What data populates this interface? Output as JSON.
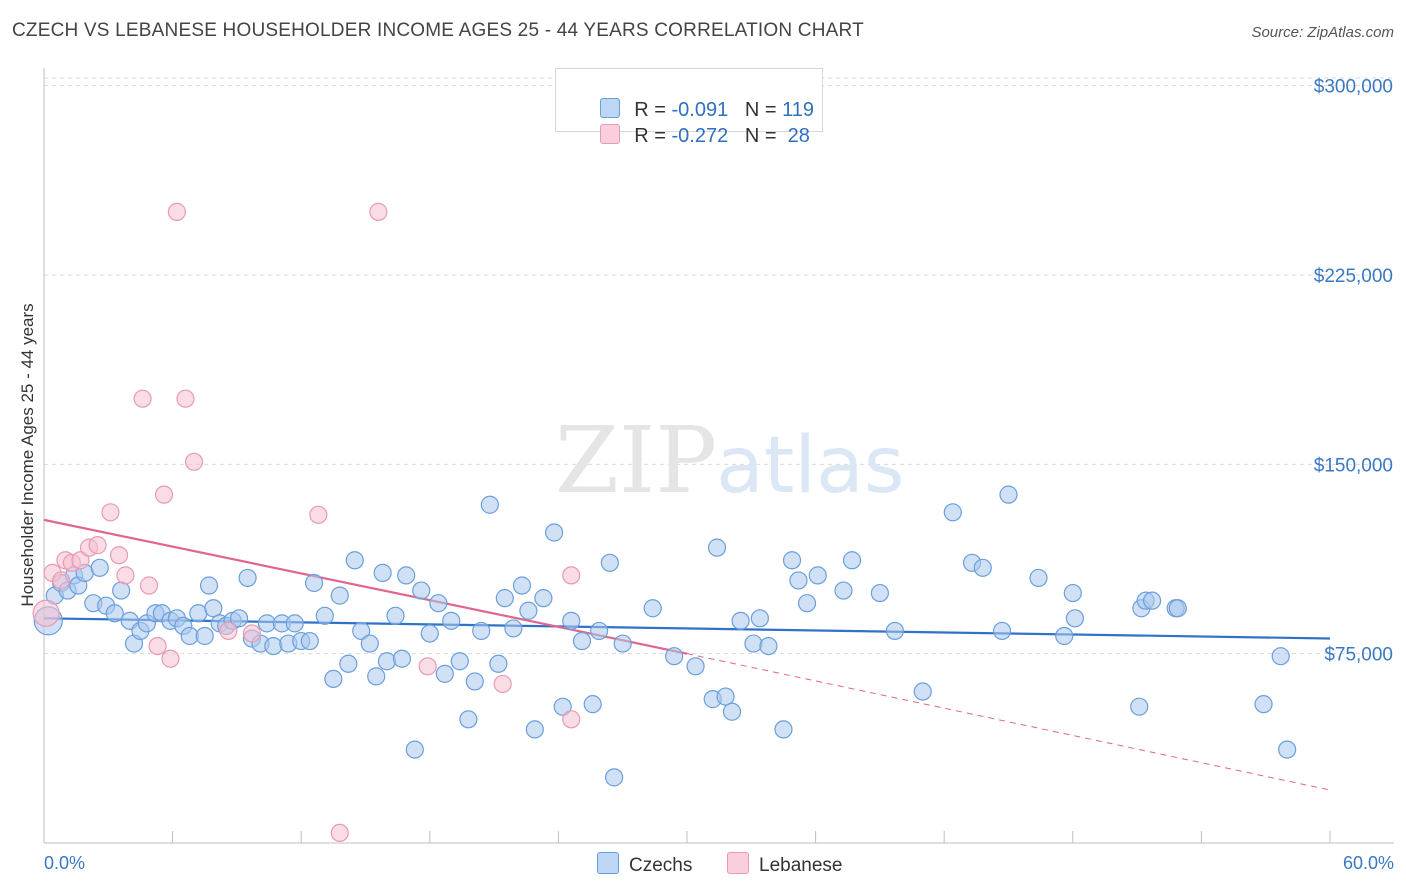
{
  "title": "CZECH VS LEBANESE HOUSEHOLDER INCOME AGES 25 - 44 YEARS CORRELATION CHART",
  "source": "Source: ZipAtlas.com",
  "watermark": {
    "zip": "ZIP",
    "atlas": "atlas"
  },
  "legend": {
    "rows": [
      {
        "r_label": "R = ",
        "r_value": "-0.091",
        "n_label": "N = ",
        "n_value": "119"
      },
      {
        "r_label": "R = ",
        "r_value": "-0.272",
        "n_label": "N = ",
        "n_value": " 28"
      }
    ]
  },
  "bottom_legend": {
    "czechs": "Czechs",
    "lebanese": "Lebanese"
  },
  "colors": {
    "czech_fill": "#a9c9ef",
    "czech_stroke": "#6a9fdc",
    "czech_line": "#2f72c9",
    "lebanese_fill": "#f6bfd0",
    "lebanese_stroke": "#e89ab4",
    "lebanese_line": "#e0668e",
    "grid": "#d9d9d9",
    "axis_text": "#3a78c4"
  },
  "chart_data": {
    "type": "scatter",
    "title": "CZECH VS LEBANESE HOUSEHOLDER INCOME AGES 25 - 44 YEARS CORRELATION CHART",
    "xlabel": "",
    "ylabel": "Householder Income Ages 25 - 44 years",
    "xlim": [
      0,
      60
    ],
    "ylim": [
      0,
      307000
    ],
    "x_tick_labels": {
      "left": "0.0%",
      "right": "60.0%"
    },
    "y_ticks": [
      75000,
      150000,
      225000,
      300000
    ],
    "y_tick_labels": [
      "$75,000",
      "$150,000",
      "$225,000",
      "$300,000"
    ],
    "series": [
      {
        "name": "Czechs",
        "r": -0.091,
        "n": 119,
        "trend": {
          "x0": 0,
          "y0": 89000,
          "x1": 60,
          "y1": 81000
        },
        "points": [
          [
            0.2,
            88000
          ],
          [
            0.5,
            98000
          ],
          [
            0.8,
            103000
          ],
          [
            1.1,
            100000
          ],
          [
            1.4,
            106000
          ],
          [
            1.6,
            102000
          ],
          [
            1.9,
            107000
          ],
          [
            2.3,
            95000
          ],
          [
            2.6,
            109000
          ],
          [
            2.9,
            94000
          ],
          [
            3.3,
            91000
          ],
          [
            3.6,
            100000
          ],
          [
            4.0,
            88000
          ],
          [
            4.2,
            79000
          ],
          [
            4.5,
            84000
          ],
          [
            4.8,
            87000
          ],
          [
            5.2,
            91000
          ],
          [
            5.5,
            91000
          ],
          [
            5.9,
            88000
          ],
          [
            6.2,
            89000
          ],
          [
            6.5,
            86000
          ],
          [
            6.8,
            82000
          ],
          [
            7.2,
            91000
          ],
          [
            7.5,
            82000
          ],
          [
            7.7,
            102000
          ],
          [
            7.9,
            93000
          ],
          [
            8.2,
            87000
          ],
          [
            8.5,
            86000
          ],
          [
            8.8,
            88000
          ],
          [
            9.1,
            89000
          ],
          [
            9.5,
            105000
          ],
          [
            9.7,
            81000
          ],
          [
            10.1,
            79000
          ],
          [
            10.4,
            87000
          ],
          [
            10.7,
            78000
          ],
          [
            11.1,
            87000
          ],
          [
            11.4,
            79000
          ],
          [
            11.7,
            87000
          ],
          [
            12.0,
            80000
          ],
          [
            12.4,
            80000
          ],
          [
            12.6,
            103000
          ],
          [
            13.1,
            90000
          ],
          [
            13.5,
            65000
          ],
          [
            13.8,
            98000
          ],
          [
            14.2,
            71000
          ],
          [
            14.5,
            112000
          ],
          [
            14.8,
            84000
          ],
          [
            15.2,
            79000
          ],
          [
            15.5,
            66000
          ],
          [
            15.8,
            107000
          ],
          [
            16.0,
            72000
          ],
          [
            16.4,
            90000
          ],
          [
            16.7,
            73000
          ],
          [
            16.9,
            106000
          ],
          [
            17.3,
            37000
          ],
          [
            17.6,
            100000
          ],
          [
            18.0,
            83000
          ],
          [
            18.4,
            95000
          ],
          [
            18.7,
            67000
          ],
          [
            19.0,
            88000
          ],
          [
            19.4,
            72000
          ],
          [
            19.8,
            49000
          ],
          [
            20.1,
            64000
          ],
          [
            20.4,
            84000
          ],
          [
            20.8,
            134000
          ],
          [
            21.2,
            71000
          ],
          [
            21.5,
            97000
          ],
          [
            21.9,
            85000
          ],
          [
            22.3,
            102000
          ],
          [
            22.6,
            92000
          ],
          [
            22.9,
            45000
          ],
          [
            23.3,
            97000
          ],
          [
            23.8,
            123000
          ],
          [
            24.2,
            54000
          ],
          [
            24.6,
            88000
          ],
          [
            25.1,
            80000
          ],
          [
            25.6,
            55000
          ],
          [
            25.9,
            84000
          ],
          [
            26.4,
            111000
          ],
          [
            26.6,
            26000
          ],
          [
            27.0,
            79000
          ],
          [
            28.4,
            93000
          ],
          [
            29.4,
            74000
          ],
          [
            30.4,
            70000
          ],
          [
            31.2,
            57000
          ],
          [
            31.4,
            117000
          ],
          [
            31.8,
            58000
          ],
          [
            32.1,
            52000
          ],
          [
            32.5,
            88000
          ],
          [
            33.1,
            79000
          ],
          [
            33.4,
            89000
          ],
          [
            33.8,
            78000
          ],
          [
            34.5,
            45000
          ],
          [
            34.9,
            112000
          ],
          [
            35.2,
            104000
          ],
          [
            35.6,
            95000
          ],
          [
            36.1,
            106000
          ],
          [
            37.3,
            100000
          ],
          [
            37.7,
            112000
          ],
          [
            39.0,
            99000
          ],
          [
            39.7,
            84000
          ],
          [
            41.0,
            60000
          ],
          [
            42.4,
            131000
          ],
          [
            43.3,
            111000
          ],
          [
            43.8,
            109000
          ],
          [
            44.7,
            84000
          ],
          [
            45.0,
            138000
          ],
          [
            46.4,
            105000
          ],
          [
            47.6,
            82000
          ],
          [
            48.0,
            99000
          ],
          [
            48.1,
            89000
          ],
          [
            51.1,
            54000
          ],
          [
            51.2,
            93000
          ],
          [
            51.4,
            96000
          ],
          [
            51.7,
            96000
          ],
          [
            52.8,
            93000
          ],
          [
            52.9,
            93000
          ],
          [
            56.9,
            55000
          ],
          [
            57.7,
            74000
          ],
          [
            58.0,
            37000
          ]
        ]
      },
      {
        "name": "Lebanese",
        "r": -0.272,
        "n": 28,
        "trend": {
          "x0": 0,
          "y0": 128000,
          "x1": 30,
          "y1": 75000
        },
        "trend_dashed": {
          "x0": 30,
          "y0": 75000,
          "x1": 60,
          "y1": 21000
        },
        "points": [
          [
            0.1,
            91000
          ],
          [
            0.4,
            107000
          ],
          [
            0.8,
            104000
          ],
          [
            1.0,
            112000
          ],
          [
            1.3,
            111000
          ],
          [
            1.7,
            112000
          ],
          [
            2.1,
            117000
          ],
          [
            2.5,
            118000
          ],
          [
            3.1,
            131000
          ],
          [
            3.5,
            114000
          ],
          [
            3.8,
            106000
          ],
          [
            4.6,
            176000
          ],
          [
            4.9,
            102000
          ],
          [
            5.3,
            78000
          ],
          [
            5.6,
            138000
          ],
          [
            5.9,
            73000
          ],
          [
            6.2,
            250000
          ],
          [
            6.6,
            176000
          ],
          [
            7.0,
            151000
          ],
          [
            8.6,
            84000
          ],
          [
            9.7,
            83000
          ],
          [
            12.8,
            130000
          ],
          [
            13.8,
            4000
          ],
          [
            15.6,
            250000
          ],
          [
            17.9,
            70000
          ],
          [
            21.4,
            63000
          ],
          [
            24.6,
            106000
          ],
          [
            24.6,
            49000
          ]
        ]
      }
    ]
  }
}
